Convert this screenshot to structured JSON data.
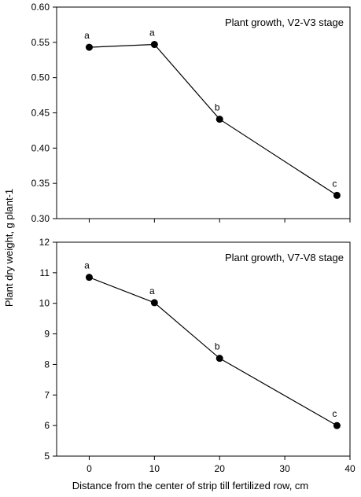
{
  "figure": {
    "ylabel": "Plant dry weight, g plant-1",
    "xlabel": "Distance from the center of strip till fertilized row, cm"
  },
  "chart_data": [
    {
      "type": "line",
      "title": "Plant growth, V2-V3 stage",
      "xlabel": "Distance from the center of strip till fertilized row, cm",
      "ylabel": "Plant dry weight, g plant-1",
      "x": [
        0,
        10,
        20,
        38
      ],
      "series": [
        {
          "values": [
            0.543,
            0.547,
            0.441,
            0.333
          ],
          "point_labels": [
            "a",
            "a",
            "b",
            "c"
          ]
        }
      ],
      "xlim": [
        -5,
        40
      ],
      "ylim": [
        0.3,
        0.6
      ],
      "xticks": [
        0,
        10,
        20,
        30,
        40
      ],
      "yticks": [
        0.3,
        0.35,
        0.4,
        0.45,
        0.5,
        0.55,
        0.6
      ],
      "ytick_labels": [
        "0.30",
        "0.35",
        "0.40",
        "0.45",
        "0.50",
        "0.55",
        "0.60"
      ],
      "legend_position": "top-right",
      "grid": false,
      "line_color": "#000000",
      "marker_color": "#000000"
    },
    {
      "type": "line",
      "title": "Plant growth, V7-V8 stage",
      "xlabel": "Distance from the center of strip till fertilized row, cm",
      "ylabel": "Plant dry weight, g plant-1",
      "x": [
        0,
        10,
        20,
        38
      ],
      "series": [
        {
          "values": [
            10.85,
            10.02,
            8.2,
            6.0
          ],
          "point_labels": [
            "a",
            "a",
            "b",
            "c"
          ]
        }
      ],
      "xlim": [
        -5,
        40
      ],
      "ylim": [
        5,
        12
      ],
      "xticks": [
        0,
        10,
        20,
        30,
        40
      ],
      "xtick_labels": [
        "0",
        "10",
        "20",
        "30",
        "40"
      ],
      "yticks": [
        5,
        6,
        7,
        8,
        9,
        10,
        11,
        12
      ],
      "ytick_labels": [
        "5",
        "6",
        "7",
        "8",
        "9",
        "10",
        "11",
        "12"
      ],
      "legend_position": "top-right",
      "grid": false,
      "line_color": "#000000",
      "marker_color": "#000000"
    }
  ]
}
